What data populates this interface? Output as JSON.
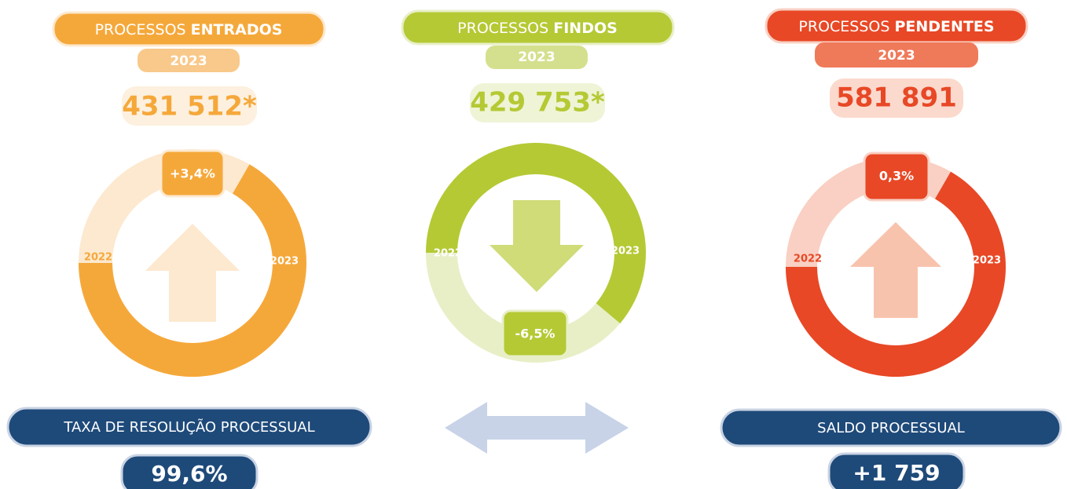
{
  "panels": [
    {
      "title_a": "PROCESSOS",
      "title_b": "ENTRADOS",
      "year": "2023",
      "value": "431 512*",
      "change": "+3,4%",
      "left_label": "2022",
      "right_label": "2023"
    },
    {
      "title_a": "PROCESSOS",
      "title_b": "FINDOS",
      "year": "2023",
      "value": "429 753*",
      "change": "-6,5%",
      "left_label": "2022",
      "right_label": "2023"
    },
    {
      "title_a": "PROCESSOS",
      "title_b": "PENDENTES",
      "year": "2023",
      "value": "581 891",
      "change": "0,3%",
      "left_label": "2022",
      "right_label": "2023"
    }
  ],
  "indicators": [
    {
      "label": "TAXA DE RESOLUÇÃO PROCESSUAL",
      "value": "99,6%"
    },
    {
      "label": "SALDO PROCESSUAL",
      "value": "+1 759"
    }
  ]
}
